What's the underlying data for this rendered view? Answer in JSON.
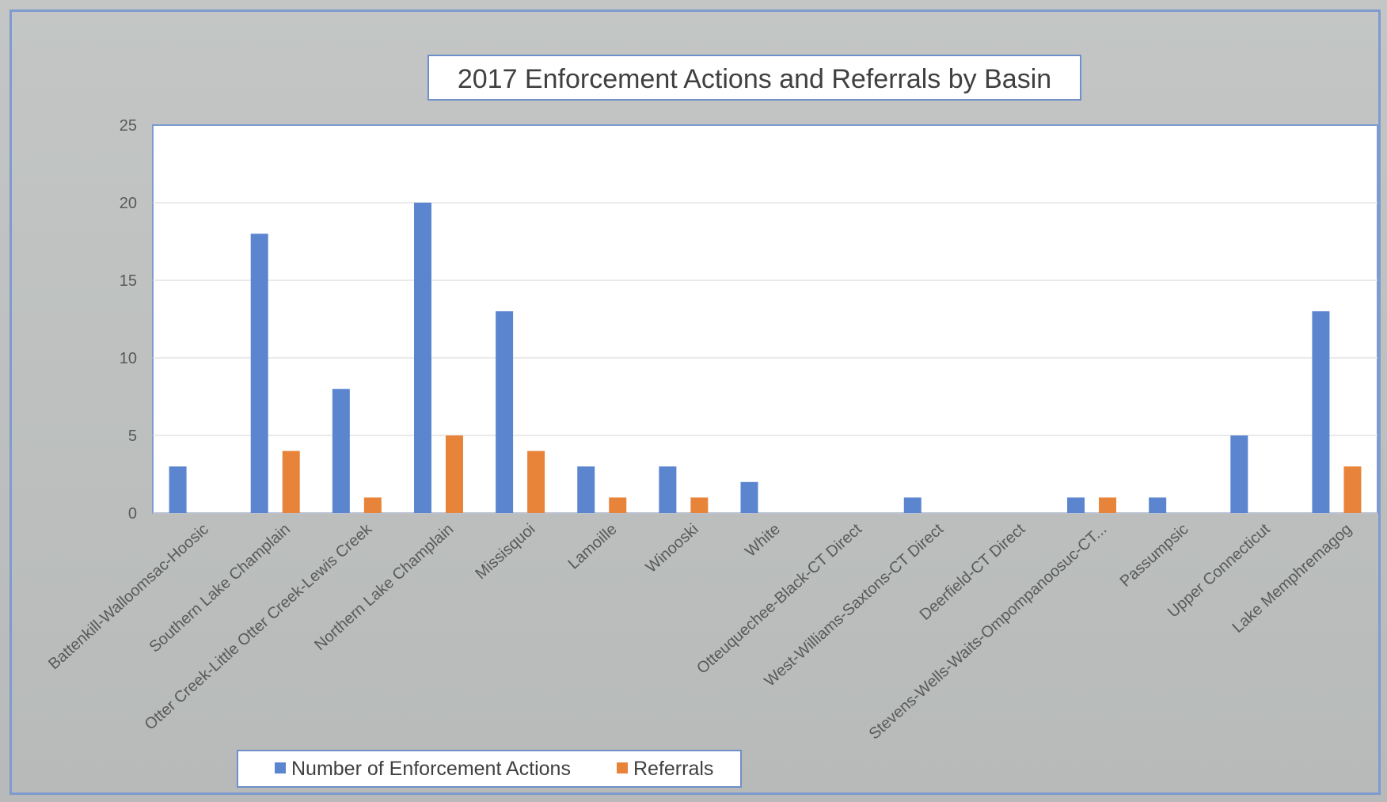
{
  "chart_data": {
    "type": "bar",
    "title": "2017 Enforcement Actions and Referrals by Basin",
    "xlabel": "",
    "ylabel": "",
    "ylim": [
      0,
      25
    ],
    "yticks": [
      0,
      5,
      10,
      15,
      20,
      25
    ],
    "grid": true,
    "legend_position": "bottom-left",
    "categories": [
      "Battenkill-Walloomsac-Hoosic",
      "Southern Lake Champlain",
      "Otter Creek-Little Otter Creek-Lewis Creek",
      "Northern Lake Champlain",
      "Missisquoi",
      "Lamoille",
      "Winooski",
      "White",
      "Otteuquechee-Black-CT Direct",
      "West-Williams-Saxtons-CT Direct",
      "Deerfield-CT Direct",
      "Stevens-Wells-Waits-Ompompanoosuc-CT...",
      "Passumpsic",
      "Upper Connecticut",
      "Lake Memphremagog"
    ],
    "series": [
      {
        "name": "Number of Enforcement Actions",
        "color": "#5b86cf",
        "values": [
          3,
          18,
          8,
          20,
          13,
          3,
          3,
          2,
          0,
          1,
          0,
          1,
          1,
          5,
          13
        ]
      },
      {
        "name": "Referrals",
        "color": "#e8843a",
        "values": [
          0,
          4,
          1,
          5,
          4,
          1,
          1,
          0,
          0,
          0,
          0,
          1,
          0,
          0,
          3
        ]
      }
    ]
  }
}
